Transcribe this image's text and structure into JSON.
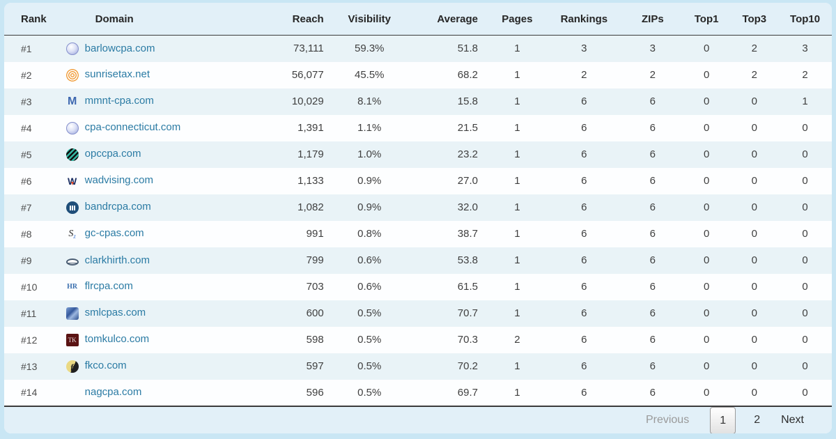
{
  "colors": {
    "page_background": "#c9e6f4",
    "card_background": "#ffffff",
    "header_background": "#e2f0f8",
    "stripe_row_background": "#e9f3f7",
    "domain_link": "#2b7ba4",
    "header_border": "#3a3a3a"
  },
  "table": {
    "columns": [
      {
        "key": "rank",
        "label": "Rank",
        "align": "left"
      },
      {
        "key": "domain",
        "label": "Domain",
        "align": "left"
      },
      {
        "key": "reach",
        "label": "Reach",
        "align": "right"
      },
      {
        "key": "visibility",
        "label": "Visibility",
        "align": "center"
      },
      {
        "key": "average",
        "label": "Average",
        "align": "right"
      },
      {
        "key": "pages",
        "label": "Pages",
        "align": "center"
      },
      {
        "key": "rankings",
        "label": "Rankings",
        "align": "center"
      },
      {
        "key": "zips",
        "label": "ZIPs",
        "align": "center"
      },
      {
        "key": "top1",
        "label": "Top1",
        "align": "center"
      },
      {
        "key": "top3",
        "label": "Top3",
        "align": "center"
      },
      {
        "key": "top10",
        "label": "Top10",
        "align": "center"
      }
    ],
    "rows": [
      {
        "rank": "#1",
        "icon": {
          "name": "globe-icon"
        },
        "domain": "barlowcpa.com",
        "reach": "73,111",
        "visibility": "59.3%",
        "average": "51.8",
        "pages": "1",
        "rankings": "3",
        "zips": "3",
        "top1": "0",
        "top3": "2",
        "top10": "3"
      },
      {
        "rank": "#2",
        "icon": {
          "name": "sunrise-icon"
        },
        "domain": "sunrisetax.net",
        "reach": "56,077",
        "visibility": "45.5%",
        "average": "68.2",
        "pages": "1",
        "rankings": "2",
        "zips": "2",
        "top1": "0",
        "top3": "2",
        "top10": "2"
      },
      {
        "rank": "#3",
        "icon": {
          "name": "monogram-m-icon",
          "glyph": "M"
        },
        "domain": "mmnt-cpa.com",
        "reach": "10,029",
        "visibility": "8.1%",
        "average": "15.8",
        "pages": "1",
        "rankings": "6",
        "zips": "6",
        "top1": "0",
        "top3": "0",
        "top10": "1"
      },
      {
        "rank": "#4",
        "icon": {
          "name": "globe-icon"
        },
        "domain": "cpa-connecticut.com",
        "reach": "1,391",
        "visibility": "1.1%",
        "average": "21.5",
        "pages": "1",
        "rankings": "6",
        "zips": "6",
        "top1": "0",
        "top3": "0",
        "top10": "0"
      },
      {
        "rank": "#5",
        "icon": {
          "name": "stripe-circle-icon"
        },
        "domain": "opccpa.com",
        "reach": "1,179",
        "visibility": "1.0%",
        "average": "23.2",
        "pages": "1",
        "rankings": "6",
        "zips": "6",
        "top1": "0",
        "top3": "0",
        "top10": "0"
      },
      {
        "rank": "#6",
        "icon": {
          "name": "monogram-w-icon",
          "glyph": "W"
        },
        "domain": "wadvising.com",
        "reach": "1,133",
        "visibility": "0.9%",
        "average": "27.0",
        "pages": "1",
        "rankings": "6",
        "zips": "6",
        "top1": "0",
        "top3": "0",
        "top10": "0"
      },
      {
        "rank": "#7",
        "icon": {
          "name": "chart-circle-icon"
        },
        "domain": "bandrcpa.com",
        "reach": "1,082",
        "visibility": "0.9%",
        "average": "32.0",
        "pages": "1",
        "rankings": "6",
        "zips": "6",
        "top1": "0",
        "top3": "0",
        "top10": "0"
      },
      {
        "rank": "#8",
        "icon": {
          "name": "script-s-icon",
          "glyph": "S"
        },
        "domain": "gc-cpas.com",
        "reach": "991",
        "visibility": "0.8%",
        "average": "38.7",
        "pages": "1",
        "rankings": "6",
        "zips": "6",
        "top1": "0",
        "top3": "0",
        "top10": "0"
      },
      {
        "rank": "#9",
        "icon": {
          "name": "oval-icon"
        },
        "domain": "clarkhirth.com",
        "reach": "799",
        "visibility": "0.6%",
        "average": "53.8",
        "pages": "1",
        "rankings": "6",
        "zips": "6",
        "top1": "0",
        "top3": "0",
        "top10": "0"
      },
      {
        "rank": "#10",
        "icon": {
          "name": "monogram-hr-icon",
          "glyph": "HR"
        },
        "domain": "flrcpa.com",
        "reach": "703",
        "visibility": "0.6%",
        "average": "61.5",
        "pages": "1",
        "rankings": "6",
        "zips": "6",
        "top1": "0",
        "top3": "0",
        "top10": "0"
      },
      {
        "rank": "#11",
        "icon": {
          "name": "photo-square-icon"
        },
        "domain": "smlcpas.com",
        "reach": "600",
        "visibility": "0.5%",
        "average": "70.7",
        "pages": "1",
        "rankings": "6",
        "zips": "6",
        "top1": "0",
        "top3": "0",
        "top10": "0"
      },
      {
        "rank": "#12",
        "icon": {
          "name": "tk-square-icon",
          "glyph": "TK"
        },
        "domain": "tomkulco.com",
        "reach": "598",
        "visibility": "0.5%",
        "average": "70.3",
        "pages": "2",
        "rankings": "6",
        "zips": "6",
        "top1": "0",
        "top3": "0",
        "top10": "0"
      },
      {
        "rank": "#13",
        "icon": {
          "name": "yellow-circle-icon",
          "glyph": "ƒ"
        },
        "domain": "fkco.com",
        "reach": "597",
        "visibility": "0.5%",
        "average": "70.2",
        "pages": "1",
        "rankings": "6",
        "zips": "6",
        "top1": "0",
        "top3": "0",
        "top10": "0"
      },
      {
        "rank": "#14",
        "icon": {
          "name": "no-icon"
        },
        "domain": "nagcpa.com",
        "reach": "596",
        "visibility": "0.5%",
        "average": "69.7",
        "pages": "1",
        "rankings": "6",
        "zips": "6",
        "top1": "0",
        "top3": "0",
        "top10": "0"
      }
    ]
  },
  "pagination": {
    "previous_label": "Previous",
    "pages": [
      "1",
      "2"
    ],
    "active_page": "1",
    "next_label": "Next"
  }
}
